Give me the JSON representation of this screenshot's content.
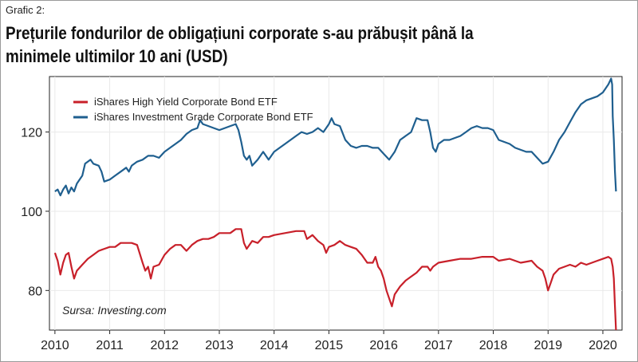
{
  "header": {
    "label": "Grafic 2:",
    "title": "Prețurile fondurilor de obligațiuni corporate s-au prăbușit până la minimele ultimilor 10 ani (USD)"
  },
  "source": "Sursa: Investing.com",
  "colors": {
    "high_yield": "#c8202a",
    "investment_grade": "#1f5f8f",
    "grid": "#e9e9e9"
  },
  "chart_data": {
    "type": "line",
    "title": "Prețurile fondurilor de obligațiuni corporate s-au prăbușit până la minimele ultimilor 10 ani (USD)",
    "xlabel": "",
    "ylabel": "",
    "xlim": [
      2009.9,
      2020.35
    ],
    "ylim": [
      70,
      134
    ],
    "x_ticks": [
      2010,
      2011,
      2012,
      2013,
      2014,
      2015,
      2016,
      2017,
      2018,
      2019,
      2020
    ],
    "y_ticks": [
      80,
      100,
      120
    ],
    "grid": true,
    "legend_position": "top-left",
    "series": [
      {
        "name": "iShares High Yield Corporate Bond ETF",
        "color": "#c8202a",
        "points": [
          [
            2010.0,
            89.5
          ],
          [
            2010.05,
            87.5
          ],
          [
            2010.1,
            84
          ],
          [
            2010.15,
            87
          ],
          [
            2010.2,
            89
          ],
          [
            2010.25,
            89.5
          ],
          [
            2010.3,
            86
          ],
          [
            2010.35,
            83
          ],
          [
            2010.4,
            85
          ],
          [
            2010.5,
            86.5
          ],
          [
            2010.6,
            88
          ],
          [
            2010.7,
            89
          ],
          [
            2010.8,
            90
          ],
          [
            2010.9,
            90.5
          ],
          [
            2011.0,
            91
          ],
          [
            2011.1,
            91
          ],
          [
            2011.2,
            92
          ],
          [
            2011.3,
            92
          ],
          [
            2011.4,
            92
          ],
          [
            2011.5,
            91.5
          ],
          [
            2011.6,
            87
          ],
          [
            2011.65,
            85
          ],
          [
            2011.7,
            86
          ],
          [
            2011.75,
            83
          ],
          [
            2011.8,
            86
          ],
          [
            2011.9,
            86.5
          ],
          [
            2012.0,
            89
          ],
          [
            2012.1,
            90.5
          ],
          [
            2012.2,
            91.5
          ],
          [
            2012.3,
            91.5
          ],
          [
            2012.4,
            90
          ],
          [
            2012.5,
            91.5
          ],
          [
            2012.6,
            92.5
          ],
          [
            2012.7,
            93
          ],
          [
            2012.8,
            93
          ],
          [
            2012.9,
            93.5
          ],
          [
            2013.0,
            94.5
          ],
          [
            2013.1,
            94.5
          ],
          [
            2013.2,
            94.5
          ],
          [
            2013.3,
            95.5
          ],
          [
            2013.4,
            95.5
          ],
          [
            2013.45,
            92
          ],
          [
            2013.5,
            90.5
          ],
          [
            2013.6,
            92.5
          ],
          [
            2013.7,
            92
          ],
          [
            2013.8,
            93.5
          ],
          [
            2013.9,
            93.5
          ],
          [
            2014.0,
            94
          ],
          [
            2014.2,
            94.5
          ],
          [
            2014.4,
            95
          ],
          [
            2014.55,
            95
          ],
          [
            2014.6,
            93
          ],
          [
            2014.7,
            94
          ],
          [
            2014.8,
            92.5
          ],
          [
            2014.9,
            91.5
          ],
          [
            2014.95,
            89.5
          ],
          [
            2015.0,
            91
          ],
          [
            2015.1,
            91.5
          ],
          [
            2015.2,
            92.5
          ],
          [
            2015.3,
            91.5
          ],
          [
            2015.4,
            91
          ],
          [
            2015.5,
            90.5
          ],
          [
            2015.6,
            89
          ],
          [
            2015.7,
            87
          ],
          [
            2015.8,
            87
          ],
          [
            2015.85,
            88.5
          ],
          [
            2015.9,
            86
          ],
          [
            2015.95,
            85
          ],
          [
            2016.0,
            83
          ],
          [
            2016.05,
            80
          ],
          [
            2016.1,
            78
          ],
          [
            2016.15,
            76
          ],
          [
            2016.2,
            79
          ],
          [
            2016.3,
            81
          ],
          [
            2016.4,
            82.5
          ],
          [
            2016.5,
            83.5
          ],
          [
            2016.6,
            84.5
          ],
          [
            2016.7,
            86
          ],
          [
            2016.8,
            86
          ],
          [
            2016.85,
            85
          ],
          [
            2016.9,
            86
          ],
          [
            2017.0,
            87
          ],
          [
            2017.2,
            87.5
          ],
          [
            2017.4,
            88
          ],
          [
            2017.6,
            88
          ],
          [
            2017.8,
            88.5
          ],
          [
            2018.0,
            88.5
          ],
          [
            2018.1,
            87.5
          ],
          [
            2018.3,
            88
          ],
          [
            2018.5,
            87
          ],
          [
            2018.7,
            87.5
          ],
          [
            2018.8,
            86
          ],
          [
            2018.9,
            85
          ],
          [
            2018.95,
            83
          ],
          [
            2019.0,
            80
          ],
          [
            2019.05,
            82
          ],
          [
            2019.1,
            84
          ],
          [
            2019.2,
            85.5
          ],
          [
            2019.3,
            86
          ],
          [
            2019.4,
            86.5
          ],
          [
            2019.5,
            86
          ],
          [
            2019.6,
            87
          ],
          [
            2019.7,
            86.5
          ],
          [
            2019.8,
            87
          ],
          [
            2019.9,
            87.5
          ],
          [
            2020.0,
            88
          ],
          [
            2020.1,
            88.5
          ],
          [
            2020.15,
            88
          ],
          [
            2020.18,
            86
          ],
          [
            2020.2,
            83
          ],
          [
            2020.22,
            76
          ],
          [
            2020.24,
            70
          ]
        ]
      },
      {
        "name": "iShares Investment Grade Corporate Bond ETF",
        "color": "#1f5f8f",
        "points": [
          [
            2010.0,
            105
          ],
          [
            2010.05,
            105.5
          ],
          [
            2010.1,
            104
          ],
          [
            2010.15,
            105.5
          ],
          [
            2010.2,
            106.5
          ],
          [
            2010.25,
            104.5
          ],
          [
            2010.3,
            106
          ],
          [
            2010.35,
            105
          ],
          [
            2010.4,
            107
          ],
          [
            2010.5,
            109
          ],
          [
            2010.55,
            112
          ],
          [
            2010.6,
            112.5
          ],
          [
            2010.65,
            113
          ],
          [
            2010.7,
            112
          ],
          [
            2010.8,
            111.5
          ],
          [
            2010.85,
            110
          ],
          [
            2010.9,
            107.5
          ],
          [
            2011.0,
            108
          ],
          [
            2011.1,
            109
          ],
          [
            2011.2,
            110
          ],
          [
            2011.3,
            111
          ],
          [
            2011.35,
            110
          ],
          [
            2011.4,
            111.5
          ],
          [
            2011.5,
            112.5
          ],
          [
            2011.6,
            113
          ],
          [
            2011.7,
            114
          ],
          [
            2011.8,
            114
          ],
          [
            2011.9,
            113.5
          ],
          [
            2012.0,
            115
          ],
          [
            2012.1,
            116
          ],
          [
            2012.2,
            117
          ],
          [
            2012.3,
            118
          ],
          [
            2012.4,
            119.5
          ],
          [
            2012.5,
            120.5
          ],
          [
            2012.6,
            121
          ],
          [
            2012.65,
            123
          ],
          [
            2012.7,
            122
          ],
          [
            2012.8,
            121.5
          ],
          [
            2012.9,
            121
          ],
          [
            2013.0,
            120.5
          ],
          [
            2013.1,
            121
          ],
          [
            2013.2,
            121.5
          ],
          [
            2013.3,
            122
          ],
          [
            2013.35,
            120.5
          ],
          [
            2013.4,
            117.5
          ],
          [
            2013.45,
            114
          ],
          [
            2013.5,
            113
          ],
          [
            2013.55,
            114
          ],
          [
            2013.6,
            111.5
          ],
          [
            2013.7,
            113
          ],
          [
            2013.8,
            115
          ],
          [
            2013.9,
            113
          ],
          [
            2014.0,
            115
          ],
          [
            2014.1,
            116
          ],
          [
            2014.2,
            117
          ],
          [
            2014.3,
            118
          ],
          [
            2014.4,
            119
          ],
          [
            2014.5,
            120
          ],
          [
            2014.6,
            119.5
          ],
          [
            2014.7,
            120
          ],
          [
            2014.8,
            121
          ],
          [
            2014.9,
            120
          ],
          [
            2015.0,
            122
          ],
          [
            2015.05,
            123.5
          ],
          [
            2015.1,
            122
          ],
          [
            2015.2,
            121.5
          ],
          [
            2015.3,
            118
          ],
          [
            2015.4,
            116.5
          ],
          [
            2015.5,
            116
          ],
          [
            2015.6,
            116.5
          ],
          [
            2015.7,
            116.5
          ],
          [
            2015.8,
            116
          ],
          [
            2015.9,
            116
          ],
          [
            2016.0,
            114.5
          ],
          [
            2016.1,
            113
          ],
          [
            2016.2,
            115
          ],
          [
            2016.3,
            118
          ],
          [
            2016.4,
            119
          ],
          [
            2016.5,
            120
          ],
          [
            2016.6,
            123.5
          ],
          [
            2016.7,
            123
          ],
          [
            2016.8,
            123
          ],
          [
            2016.85,
            120
          ],
          [
            2016.9,
            116
          ],
          [
            2016.95,
            115
          ],
          [
            2017.0,
            117
          ],
          [
            2017.1,
            118
          ],
          [
            2017.2,
            118
          ],
          [
            2017.3,
            118.5
          ],
          [
            2017.4,
            119
          ],
          [
            2017.5,
            120
          ],
          [
            2017.6,
            121
          ],
          [
            2017.7,
            121.5
          ],
          [
            2017.8,
            121
          ],
          [
            2017.9,
            121
          ],
          [
            2018.0,
            120.5
          ],
          [
            2018.1,
            118
          ],
          [
            2018.2,
            117.5
          ],
          [
            2018.3,
            117
          ],
          [
            2018.4,
            116
          ],
          [
            2018.5,
            115.5
          ],
          [
            2018.6,
            115
          ],
          [
            2018.7,
            115
          ],
          [
            2018.8,
            113.5
          ],
          [
            2018.9,
            112
          ],
          [
            2019.0,
            112.5
          ],
          [
            2019.1,
            115
          ],
          [
            2019.2,
            118
          ],
          [
            2019.3,
            120
          ],
          [
            2019.4,
            122.5
          ],
          [
            2019.5,
            125
          ],
          [
            2019.6,
            127
          ],
          [
            2019.7,
            128
          ],
          [
            2019.8,
            128.5
          ],
          [
            2019.9,
            129
          ],
          [
            2020.0,
            130
          ],
          [
            2020.05,
            131
          ],
          [
            2020.1,
            132
          ],
          [
            2020.15,
            133.5
          ],
          [
            2020.17,
            132
          ],
          [
            2020.18,
            124
          ],
          [
            2020.2,
            118
          ],
          [
            2020.22,
            110
          ],
          [
            2020.24,
            105
          ]
        ]
      }
    ]
  }
}
